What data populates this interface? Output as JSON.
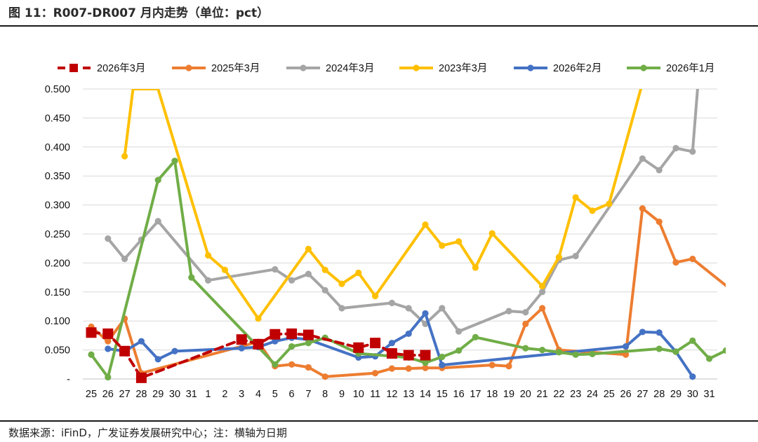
{
  "figure": {
    "title": "图 11：R007-DR007 月内走势（单位：pct）",
    "source": "数据来源：iFinD，广发证券发展研究中心；注：横轴为日期"
  },
  "chart_data": {
    "type": "line",
    "title": "R007-DR007 月内走势（单位：pct）",
    "xlabel": "",
    "ylabel": "",
    "ylim": [
      0,
      0.5
    ],
    "grid": true,
    "legend_position": "top",
    "x_tick_labels": [
      "25",
      "26",
      "27",
      "28",
      "29",
      "30",
      "31",
      "1",
      "2",
      "3",
      "4",
      "5",
      "6",
      "7",
      "8",
      "9",
      "10",
      "11",
      "12",
      "13",
      "14",
      "15",
      "16",
      "17",
      "18",
      "19",
      "20",
      "21",
      "22",
      "23",
      "24",
      "25",
      "26",
      "27",
      "28",
      "29",
      "30",
      "31"
    ],
    "y_tick_labels": [
      "-",
      "0.050",
      "0.100",
      "0.150",
      "0.200",
      "0.250",
      "0.300",
      "0.350",
      "0.400",
      "0.450",
      "0.500"
    ],
    "y_ticks": [
      0,
      0.05,
      0.1,
      0.15,
      0.2,
      0.25,
      0.3,
      0.35,
      0.4,
      0.45,
      0.5
    ],
    "series": [
      {
        "name": "2026年3月",
        "color": "#c00000",
        "style": "dashed",
        "marker": "square",
        "points": [
          [
            0,
            0.08
          ],
          [
            1,
            0.078
          ],
          [
            2,
            0.048
          ],
          [
            3,
            0.002
          ],
          [
            9,
            0.068
          ],
          [
            10,
            0.06
          ],
          [
            11,
            0.077
          ],
          [
            12,
            0.078
          ],
          [
            13,
            0.076
          ],
          [
            16,
            0.054
          ],
          [
            17,
            0.062
          ],
          [
            18,
            0.044
          ],
          [
            19,
            0.041
          ],
          [
            20,
            0.041
          ]
        ]
      },
      {
        "name": "2025年3月",
        "color": "#ed7d31",
        "style": "solid",
        "marker": "circle",
        "points": [
          [
            0,
            0.09
          ],
          [
            1,
            0.065
          ],
          [
            2,
            0.104
          ],
          [
            3,
            0.01
          ],
          [
            10,
            0.064
          ],
          [
            11,
            0.022
          ],
          [
            12,
            0.025
          ],
          [
            13,
            0.02
          ],
          [
            14,
            0.004
          ],
          [
            17,
            0.01
          ],
          [
            18,
            0.018
          ],
          [
            19,
            0.018
          ],
          [
            20,
            0.019
          ],
          [
            21,
            0.019
          ],
          [
            24,
            0.024
          ],
          [
            25,
            0.022
          ],
          [
            26,
            0.095
          ],
          [
            27,
            0.122
          ],
          [
            28,
            0.05
          ],
          [
            32,
            0.042
          ],
          [
            33,
            0.294
          ],
          [
            34,
            0.271
          ],
          [
            35,
            0.201
          ],
          [
            36,
            0.207
          ],
          [
            40,
            0.115
          ]
        ]
      },
      {
        "name": "2024年3月",
        "color": "#a5a5a5",
        "style": "solid",
        "marker": "circle",
        "points": [
          [
            1,
            0.242
          ],
          [
            2,
            0.207
          ],
          [
            3,
            0.24
          ],
          [
            4,
            0.272
          ],
          [
            7,
            0.17
          ],
          [
            11,
            0.189
          ],
          [
            12,
            0.17
          ],
          [
            13,
            0.181
          ],
          [
            14,
            0.153
          ],
          [
            15,
            0.122
          ],
          [
            18,
            0.131
          ],
          [
            19,
            0.122
          ],
          [
            20,
            0.095
          ],
          [
            21,
            0.122
          ],
          [
            22,
            0.082
          ],
          [
            25,
            0.117
          ],
          [
            26,
            0.115
          ],
          [
            27,
            0.15
          ],
          [
            28,
            0.205
          ],
          [
            29,
            0.212
          ],
          [
            33,
            0.38
          ],
          [
            34,
            0.36
          ],
          [
            35,
            0.398
          ],
          [
            36,
            0.392
          ],
          [
            36.3,
            0.5
          ]
        ]
      },
      {
        "name": "2023年3月",
        "color": "#ffc000",
        "style": "solid",
        "marker": "circle",
        "points": [
          [
            2,
            0.384
          ],
          [
            2.5,
            0.5
          ],
          [
            4,
            0.5
          ],
          [
            7,
            0.213
          ],
          [
            8,
            0.188
          ],
          [
            10,
            0.104
          ],
          [
            13,
            0.224
          ],
          [
            14,
            0.188
          ],
          [
            15,
            0.164
          ],
          [
            16,
            0.183
          ],
          [
            17,
            0.143
          ],
          [
            20,
            0.266
          ],
          [
            21,
            0.23
          ],
          [
            22,
            0.237
          ],
          [
            23,
            0.192
          ],
          [
            24,
            0.251
          ],
          [
            27,
            0.16
          ],
          [
            28,
            0.21
          ],
          [
            29,
            0.313
          ],
          [
            30,
            0.29
          ],
          [
            31,
            0.302
          ],
          [
            32.9,
            0.5
          ]
        ]
      },
      {
        "name": "2026年2月",
        "color": "#4472c4",
        "style": "solid",
        "marker": "circle",
        "points": [
          [
            1,
            0.052
          ],
          [
            2,
            0.048
          ],
          [
            3,
            0.065
          ],
          [
            4,
            0.034
          ],
          [
            5,
            0.048
          ],
          [
            9,
            0.053
          ],
          [
            10,
            0.055
          ],
          [
            11,
            0.065
          ],
          [
            12,
            0.071
          ],
          [
            13,
            0.068
          ],
          [
            16,
            0.037
          ],
          [
            17,
            0.039
          ],
          [
            18,
            0.062
          ],
          [
            19,
            0.078
          ],
          [
            20,
            0.113
          ],
          [
            21,
            0.024
          ],
          [
            32,
            0.056
          ],
          [
            33,
            0.081
          ],
          [
            34,
            0.08
          ],
          [
            35,
            0.047
          ],
          [
            36,
            0.004
          ]
        ]
      },
      {
        "name": "2026年1月",
        "color": "#70ad47",
        "style": "solid",
        "marker": "circle",
        "points": [
          [
            0,
            0.042
          ],
          [
            1,
            0.003
          ],
          [
            4,
            0.343
          ],
          [
            5,
            0.376
          ],
          [
            6,
            0.175
          ],
          [
            11,
            0.025
          ],
          [
            12,
            0.056
          ],
          [
            13,
            0.062
          ],
          [
            14,
            0.071
          ],
          [
            16,
            0.044
          ],
          [
            19,
            0.037
          ],
          [
            20,
            0.028
          ],
          [
            21,
            0.038
          ],
          [
            22,
            0.049
          ],
          [
            23,
            0.072
          ],
          [
            26,
            0.053
          ],
          [
            27,
            0.05
          ],
          [
            28,
            0.046
          ],
          [
            29,
            0.042
          ],
          [
            30,
            0.043
          ],
          [
            34,
            0.052
          ],
          [
            35,
            0.047
          ],
          [
            36,
            0.066
          ],
          [
            37,
            0.035
          ],
          [
            38,
            0.049
          ]
        ]
      }
    ]
  }
}
